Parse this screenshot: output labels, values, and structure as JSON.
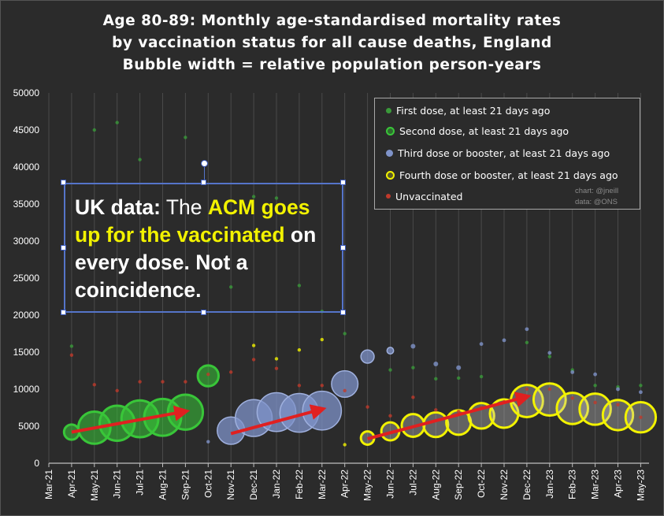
{
  "title": {
    "line1": "Age 80-89: Monthly age-standardised mortality rates",
    "line2": "by vaccination status for all cause deaths, England",
    "line3": "Bubble width = relative population person-years"
  },
  "legend": {
    "items": [
      {
        "key": "first",
        "label": "First dose, at least 21 days ago",
        "color": "#3a9a3a"
      },
      {
        "key": "second",
        "label": "Second dose, at least 21 days ago",
        "color": "#39c639"
      },
      {
        "key": "third",
        "label": "Third dose or booster, at least 21 days ago",
        "color": "#7f93c9"
      },
      {
        "key": "fourth",
        "label": "Fourth dose or booster, at least 21 days ago",
        "color": "#f2f200"
      },
      {
        "key": "unvaccinated",
        "label": "Unvaccinated",
        "color": "#c0392b"
      }
    ],
    "credit_line1": "chart: @jneill",
    "credit_line2": "data: @ONS"
  },
  "callout": {
    "part1": "UK data:",
    "part2": " The ",
    "part3": "ACM goes up for the vaccinated",
    "part4": " on every dose. Not a coincidence."
  },
  "chart_data": {
    "type": "scatter",
    "subtype": "bubble",
    "xlabel": "",
    "ylabel": "",
    "categories": [
      "Mar-21",
      "Apr-21",
      "May-21",
      "Jun-21",
      "Jul-21",
      "Aug-21",
      "Sep-21",
      "Oct-21",
      "Nov-21",
      "Dec-21",
      "Jan-22",
      "Feb-22",
      "Mar-22",
      "Apr-22",
      "May-22",
      "Jun-22",
      "Jul-22",
      "Aug-22",
      "Sep-22",
      "Oct-22",
      "Nov-22",
      "Dec-22",
      "Jan-23",
      "Feb-23",
      "Mar-23",
      "Apr-23",
      "May-23"
    ],
    "ylim": [
      0,
      50000
    ],
    "yticks": [
      0,
      5000,
      10000,
      15000,
      20000,
      25000,
      30000,
      35000,
      40000,
      45000,
      50000
    ],
    "gridlines": "vertical per month",
    "series": [
      {
        "name": "First dose, at least 21 days ago",
        "key": "first",
        "color": "#3a9a3a",
        "points": [
          {
            "x": "Apr-21",
            "y": 15800,
            "w": 0.3
          },
          {
            "x": "May-21",
            "y": 45000,
            "w": 0.1
          },
          {
            "x": "Jun-21",
            "y": 46000,
            "w": 0.1
          },
          {
            "x": "Jul-21",
            "y": 41000,
            "w": 0.1
          },
          {
            "x": "Sep-21",
            "y": 44000,
            "w": 0.1
          },
          {
            "x": "Oct-21",
            "y": 30000,
            "w": 0.1
          },
          {
            "x": "Nov-21",
            "y": 23800,
            "w": 0.2
          },
          {
            "x": "Dec-21",
            "y": 36000,
            "w": 0.2
          },
          {
            "x": "Jan-22",
            "y": 35800,
            "w": 0.15
          },
          {
            "x": "Feb-22",
            "y": 24000,
            "w": 0.15
          },
          {
            "x": "Mar-22",
            "y": 20500,
            "w": 0.1
          },
          {
            "x": "Apr-22",
            "y": 17500,
            "w": 0.1
          },
          {
            "x": "Jun-22",
            "y": 12600,
            "w": 0.1
          },
          {
            "x": "Jul-22",
            "y": 12900,
            "w": 0.1
          },
          {
            "x": "Aug-22",
            "y": 11400,
            "w": 0.1
          },
          {
            "x": "Sep-22",
            "y": 11500,
            "w": 0.1
          },
          {
            "x": "Oct-22",
            "y": 11700,
            "w": 0.1
          },
          {
            "x": "Dec-22",
            "y": 16300,
            "w": 0.1
          },
          {
            "x": "Jan-23",
            "y": 14400,
            "w": 0.1
          },
          {
            "x": "Feb-23",
            "y": 12600,
            "w": 0.1
          },
          {
            "x": "Mar-23",
            "y": 10500,
            "w": 0.1
          },
          {
            "x": "Apr-23",
            "y": 10300,
            "w": 0.1
          },
          {
            "x": "May-23",
            "y": 10500,
            "w": 0.1
          }
        ]
      },
      {
        "name": "Second dose, at least 21 days ago",
        "key": "second",
        "color": "#39c639",
        "points": [
          {
            "x": "Apr-21",
            "y": 4200,
            "w": 1.6
          },
          {
            "x": "May-21",
            "y": 4800,
            "w": 3.4
          },
          {
            "x": "Jun-21",
            "y": 5400,
            "w": 3.7
          },
          {
            "x": "Jul-21",
            "y": 6000,
            "w": 3.9
          },
          {
            "x": "Aug-21",
            "y": 6200,
            "w": 3.9
          },
          {
            "x": "Sep-21",
            "y": 6900,
            "w": 3.7
          },
          {
            "x": "Oct-21",
            "y": 11800,
            "w": 2.2
          }
        ]
      },
      {
        "name": "Third dose or booster, at least 21 days ago",
        "key": "third",
        "color": "#7f93c9",
        "points": [
          {
            "x": "Oct-21",
            "y": 2900,
            "w": 0.3
          },
          {
            "x": "Nov-21",
            "y": 4400,
            "w": 2.9
          },
          {
            "x": "Dec-21",
            "y": 6100,
            "w": 3.9
          },
          {
            "x": "Jan-22",
            "y": 6900,
            "w": 4.1
          },
          {
            "x": "Feb-22",
            "y": 6800,
            "w": 4.1
          },
          {
            "x": "Mar-22",
            "y": 7100,
            "w": 4.1
          },
          {
            "x": "Apr-22",
            "y": 10700,
            "w": 2.8
          },
          {
            "x": "May-22",
            "y": 14400,
            "w": 1.4
          },
          {
            "x": "Jun-22",
            "y": 15200,
            "w": 0.7
          },
          {
            "x": "Jul-22",
            "y": 15800,
            "w": 0.5
          },
          {
            "x": "Aug-22",
            "y": 13400,
            "w": 0.5
          },
          {
            "x": "Sep-22",
            "y": 12900,
            "w": 0.5
          },
          {
            "x": "Oct-22",
            "y": 16100,
            "w": 0.4
          },
          {
            "x": "Nov-22",
            "y": 16600,
            "w": 0.4
          },
          {
            "x": "Dec-22",
            "y": 18100,
            "w": 0.4
          },
          {
            "x": "Jan-23",
            "y": 14900,
            "w": 0.4
          },
          {
            "x": "Feb-23",
            "y": 12300,
            "w": 0.4
          },
          {
            "x": "Mar-23",
            "y": 12000,
            "w": 0.4
          },
          {
            "x": "Apr-23",
            "y": 10000,
            "w": 0.4
          },
          {
            "x": "May-23",
            "y": 9600,
            "w": 0.4
          }
        ]
      },
      {
        "name": "Fourth dose or booster, at least 21 days ago",
        "key": "fourth",
        "color": "#f2f200",
        "points": [
          {
            "x": "Dec-21",
            "y": 15900,
            "w": 0.3
          },
          {
            "x": "Jan-22",
            "y": 14100,
            "w": 0.3
          },
          {
            "x": "Feb-22",
            "y": 15300,
            "w": 0.3
          },
          {
            "x": "Mar-22",
            "y": 16700,
            "w": 0.3
          },
          {
            "x": "Apr-22",
            "y": 2500,
            "w": 0.3
          },
          {
            "x": "May-22",
            "y": 3400,
            "w": 1.4
          },
          {
            "x": "Jun-22",
            "y": 4300,
            "w": 1.9
          },
          {
            "x": "Jul-22",
            "y": 5100,
            "w": 2.4
          },
          {
            "x": "Aug-22",
            "y": 5200,
            "w": 2.6
          },
          {
            "x": "Sep-22",
            "y": 5500,
            "w": 2.6
          },
          {
            "x": "Oct-22",
            "y": 6400,
            "w": 2.7
          },
          {
            "x": "Nov-22",
            "y": 6700,
            "w": 3.0
          },
          {
            "x": "Dec-22",
            "y": 8400,
            "w": 3.4
          },
          {
            "x": "Jan-23",
            "y": 8600,
            "w": 3.4
          },
          {
            "x": "Feb-23",
            "y": 7400,
            "w": 3.3
          },
          {
            "x": "Mar-23",
            "y": 7300,
            "w": 3.3
          },
          {
            "x": "Apr-23",
            "y": 6500,
            "w": 3.2
          },
          {
            "x": "May-23",
            "y": 6200,
            "w": 3.2
          }
        ]
      },
      {
        "name": "Unvaccinated",
        "key": "unvaccinated",
        "color": "#c0392b",
        "points": [
          {
            "x": "Apr-21",
            "y": 14600,
            "w": 0.25
          },
          {
            "x": "May-21",
            "y": 10600,
            "w": 0.25
          },
          {
            "x": "Jun-21",
            "y": 9800,
            "w": 0.25
          },
          {
            "x": "Jul-21",
            "y": 11000,
            "w": 0.25
          },
          {
            "x": "Aug-21",
            "y": 11000,
            "w": 0.25
          },
          {
            "x": "Sep-21",
            "y": 11000,
            "w": 0.25
          },
          {
            "x": "Oct-21",
            "y": 12000,
            "w": 0.25
          },
          {
            "x": "Nov-21",
            "y": 12300,
            "w": 0.25
          },
          {
            "x": "Dec-21",
            "y": 14000,
            "w": 0.25
          },
          {
            "x": "Jan-22",
            "y": 12800,
            "w": 0.25
          },
          {
            "x": "Feb-22",
            "y": 10500,
            "w": 0.25
          },
          {
            "x": "Mar-22",
            "y": 10500,
            "w": 0.25
          },
          {
            "x": "Apr-22",
            "y": 9800,
            "w": 0.25
          },
          {
            "x": "May-22",
            "y": 7600,
            "w": 0.25
          },
          {
            "x": "Jun-22",
            "y": 6400,
            "w": 0.25
          },
          {
            "x": "Jul-22",
            "y": 8900,
            "w": 0.25
          },
          {
            "x": "Aug-22",
            "y": 7200,
            "w": 0.25
          },
          {
            "x": "Sep-22",
            "y": 7000,
            "w": 0.25
          },
          {
            "x": "Oct-22",
            "y": 7500,
            "w": 0.25
          },
          {
            "x": "Nov-22",
            "y": 8300,
            "w": 0.25
          },
          {
            "x": "Dec-22",
            "y": 10000,
            "w": 0.25
          },
          {
            "x": "Jan-23",
            "y": 10000,
            "w": 0.25
          },
          {
            "x": "Feb-23",
            "y": 8800,
            "w": 0.25
          },
          {
            "x": "Mar-23",
            "y": 8200,
            "w": 0.25
          },
          {
            "x": "Apr-23",
            "y": 7900,
            "w": 0.25
          },
          {
            "x": "May-23",
            "y": 6200,
            "w": 0.25
          }
        ]
      }
    ],
    "annotations": [
      {
        "type": "arrow",
        "color": "#e02020",
        "from": {
          "x": "Apr-21",
          "y": 4200
        },
        "to": {
          "x": "Sep-21",
          "y": 7000
        }
      },
      {
        "type": "arrow",
        "color": "#e02020",
        "from": {
          "x": "Nov-21",
          "y": 4000
        },
        "to": {
          "x": "Mar-22",
          "y": 7300
        }
      },
      {
        "type": "arrow",
        "color": "#e02020",
        "from": {
          "x": "May-22",
          "y": 3300
        },
        "to": {
          "x": "Dec-22",
          "y": 9000
        }
      }
    ]
  }
}
